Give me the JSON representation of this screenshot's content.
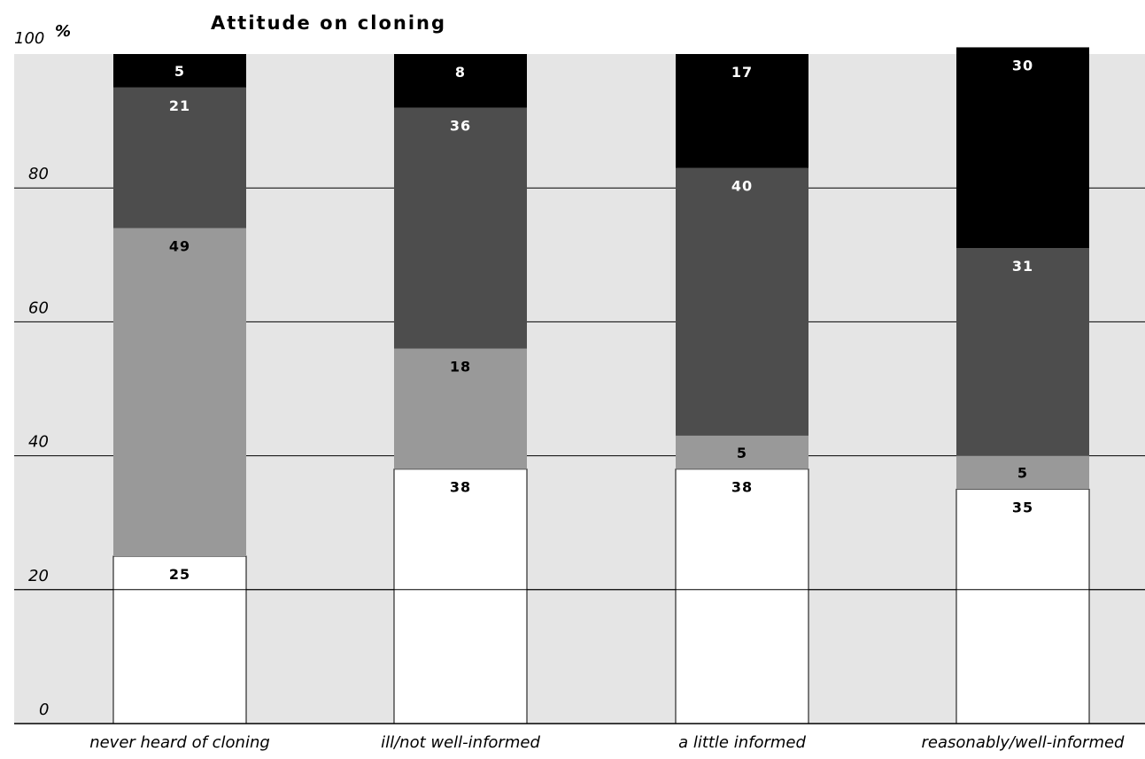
{
  "chart_data": {
    "type": "bar",
    "stacked": true,
    "title": "Attitude on cloning",
    "ylabel": "%",
    "xlabel": "",
    "ylim": [
      0,
      100
    ],
    "yticks": [
      0,
      20,
      40,
      60,
      80,
      100
    ],
    "grid": true,
    "categories": [
      "never heard of cloning",
      "ill/not well-informed",
      "a little informed",
      "reasonably/well-informed"
    ],
    "series": [
      {
        "values": [
          25,
          38,
          38,
          35
        ],
        "color": "#ffffff"
      },
      {
        "values": [
          49,
          18,
          5,
          5
        ],
        "color": "#999999"
      },
      {
        "values": [
          21,
          36,
          40,
          31
        ],
        "color": "#4d4d4d"
      },
      {
        "values": [
          5,
          8,
          17,
          30
        ],
        "color": "#000000"
      }
    ],
    "colors": {
      "plot_background": "#e5e5e5",
      "gridline": "#000000"
    }
  }
}
